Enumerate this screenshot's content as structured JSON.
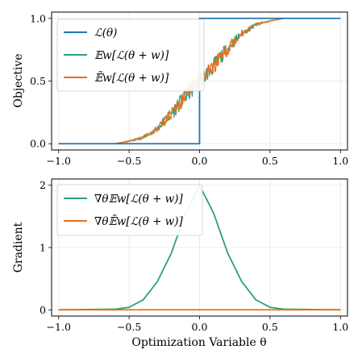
{
  "chart_data": [
    {
      "type": "line",
      "ylabel": "Objective",
      "xlim": [
        -1.05,
        1.05
      ],
      "ylim": [
        -0.05,
        1.05
      ],
      "xticks": [
        "−1.0",
        "−0.5",
        "0.0",
        "0.5",
        "1.0"
      ],
      "xtick_values": [
        -1.0,
        -0.5,
        0.0,
        0.5,
        1.0
      ],
      "yticks": [
        "0.0",
        "0.5",
        "1.0"
      ],
      "ytick_values": [
        0.0,
        0.5,
        1.0
      ],
      "grid": true,
      "legend_position": "top-left",
      "series": [
        {
          "name": "ℒ(θ)",
          "color": "#1f77b4",
          "kind": "step",
          "x": [
            -1.0,
            0.0,
            0.0,
            1.0
          ],
          "y": [
            0.0,
            0.0,
            1.0,
            1.0
          ]
        },
        {
          "name": "𝔼w[ℒ(θ + w)]",
          "color": "#2ca07f",
          "kind": "noisy-sigmoid",
          "x": [
            -1.0,
            -0.6,
            -0.5,
            -0.4,
            -0.3,
            -0.2,
            -0.1,
            0.0,
            0.1,
            0.2,
            0.3,
            0.4,
            0.5,
            0.6,
            1.0
          ],
          "y": [
            0.0,
            0.0,
            0.02,
            0.05,
            0.12,
            0.24,
            0.38,
            0.5,
            0.62,
            0.76,
            0.88,
            0.95,
            0.98,
            1.0,
            1.0
          ]
        },
        {
          "name": "𝔼̃w[ℒ(θ + w)]",
          "color": "#e8701a",
          "kind": "noisy-sigmoid",
          "x": [
            -1.0,
            -0.6,
            -0.5,
            -0.4,
            -0.3,
            -0.2,
            -0.1,
            0.0,
            0.1,
            0.2,
            0.3,
            0.4,
            0.5,
            0.6,
            1.0
          ],
          "y": [
            0.0,
            0.0,
            0.02,
            0.05,
            0.12,
            0.24,
            0.38,
            0.5,
            0.62,
            0.76,
            0.88,
            0.95,
            0.98,
            1.0,
            1.0
          ]
        }
      ]
    },
    {
      "type": "line",
      "xlabel": "Optimization Variable θ",
      "ylabel": "Gradient",
      "xlim": [
        -1.05,
        1.05
      ],
      "ylim": [
        -0.1,
        2.1
      ],
      "xticks": [
        "−1.0",
        "−0.5",
        "0.0",
        "0.5",
        "1.0"
      ],
      "xtick_values": [
        -1.0,
        -0.5,
        0.0,
        0.5,
        1.0
      ],
      "yticks": [
        "0",
        "1",
        "2"
      ],
      "ytick_values": [
        0,
        1,
        2
      ],
      "grid": true,
      "legend_position": "top-left",
      "series": [
        {
          "name": "∇θ𝔼w[ℒ(θ + w)]",
          "color": "#2ca07f",
          "x": [
            -1.0,
            -0.6,
            -0.5,
            -0.4,
            -0.3,
            -0.2,
            -0.1,
            0.0,
            0.1,
            0.2,
            0.3,
            0.4,
            0.5,
            0.6,
            1.0
          ],
          "y": [
            0.0,
            0.01,
            0.04,
            0.16,
            0.45,
            0.91,
            1.55,
            2.0,
            1.55,
            0.91,
            0.45,
            0.16,
            0.04,
            0.01,
            0.0
          ]
        },
        {
          "name": "∇θ𝔼̃w[ℒ(θ + w)]",
          "color": "#e8701a",
          "x": [
            -1.0,
            1.0
          ],
          "y": [
            0.0,
            0.0
          ]
        }
      ]
    }
  ]
}
